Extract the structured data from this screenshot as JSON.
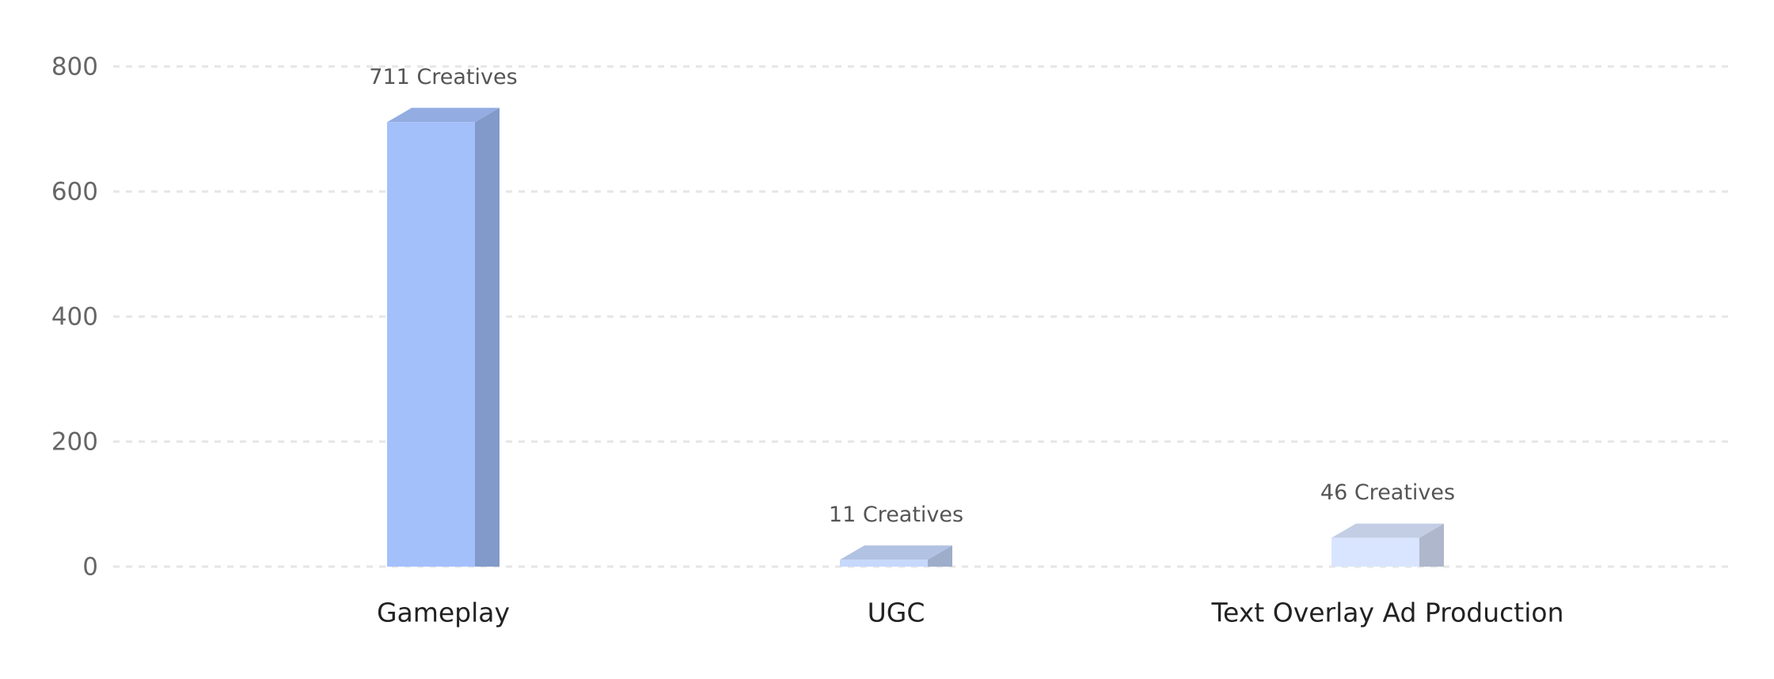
{
  "chart_data": {
    "type": "bar3d",
    "categories": [
      "Gameplay",
      "UGC",
      "Text Overlay Ad Production"
    ],
    "values": [
      711,
      11,
      46
    ],
    "value_labels": [
      "711 Creatives",
      "11 Creatives",
      "46 Creatives"
    ],
    "colors": [
      "#a3c0fb",
      "#c6d8fc",
      "#d9e5fe"
    ],
    "ylim": [
      0,
      800
    ],
    "yticks": [
      0,
      200,
      400,
      600,
      800
    ],
    "grid": true
  }
}
